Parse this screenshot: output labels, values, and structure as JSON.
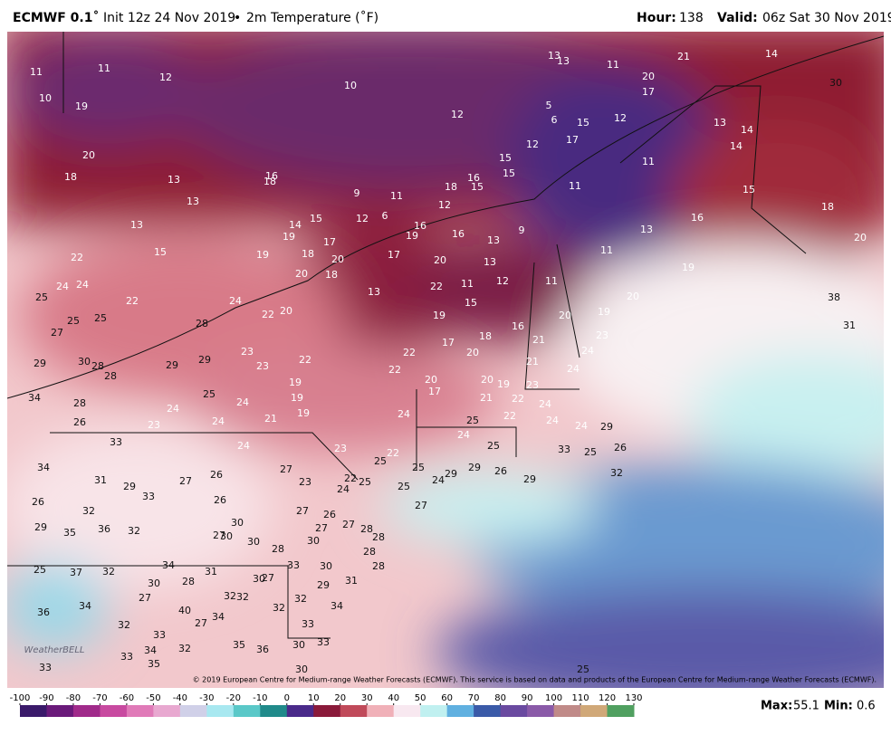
{
  "header": {
    "model": "ECMWF 0.1˚",
    "init": "Init 12z 24 Nov 2019",
    "separator": "•",
    "field": "2m Temperature (˚F)",
    "hour_label": "Hour:",
    "hour": "138",
    "valid_label": "Valid:",
    "valid": "06z Sat 30 Nov 2019"
  },
  "map": {
    "labels": [
      11,
      11,
      12,
      10,
      19,
      10,
      12,
      5,
      6,
      15,
      12,
      13,
      13,
      11,
      20,
      17,
      14,
      21,
      13,
      14,
      14,
      17,
      12,
      15,
      15,
      16,
      15,
      18,
      11,
      11,
      15,
      18,
      16,
      13,
      20,
      9,
      13,
      16,
      19,
      16,
      12,
      11,
      9,
      6,
      12,
      15,
      14,
      19,
      13,
      13,
      13,
      15,
      16,
      18,
      20,
      18,
      22,
      24,
      24,
      25,
      22,
      25,
      25,
      27,
      28,
      24,
      22,
      20,
      18,
      20,
      17,
      19,
      18,
      20,
      17,
      13,
      20,
      13,
      11,
      12,
      11,
      22,
      15,
      19,
      16,
      20,
      19,
      20,
      19,
      11,
      17,
      18,
      20,
      21,
      23,
      24,
      24,
      21,
      22,
      22,
      22,
      23,
      23,
      29,
      30,
      28,
      28,
      29,
      29,
      34,
      28,
      26,
      23,
      24,
      24,
      24,
      25,
      19,
      19,
      19,
      21,
      20,
      17,
      20,
      19,
      23,
      21,
      22,
      22,
      24,
      24,
      24,
      25,
      24,
      25,
      24,
      29,
      33,
      25,
      26,
      33,
      24,
      23,
      22,
      25,
      25,
      24,
      29,
      29,
      26,
      29,
      32,
      34,
      31,
      29,
      27,
      26,
      27,
      23,
      22,
      24,
      25,
      25,
      26,
      32,
      33,
      26,
      27,
      26,
      27,
      29,
      35,
      36,
      32,
      30,
      27,
      30,
      30,
      28,
      27,
      27,
      28,
      28,
      30,
      28,
      28,
      25,
      37,
      32,
      34,
      31,
      28,
      30,
      33,
      30,
      29,
      31,
      30,
      27,
      27,
      34,
      36,
      40,
      32,
      32,
      32,
      32,
      34,
      27,
      34,
      32,
      33,
      32,
      34,
      33,
      35,
      35,
      36,
      30,
      33,
      33,
      30,
      33,
      38,
      31,
      30,
      25
    ],
    "copyright": "© 2019 European Centre for Medium-range Weather Forecasts (ECMWF). This service is based on data and products of the European Centre for Medium-range Weather Forecasts (ECMWF).",
    "logo": "WeatherBELL"
  },
  "colorbar": {
    "ticks": [
      -100,
      -90,
      -80,
      -70,
      -60,
      -50,
      -40,
      -30,
      -20,
      -10,
      0,
      10,
      20,
      30,
      40,
      50,
      60,
      70,
      80,
      90,
      100,
      110,
      120,
      130
    ],
    "colors": [
      "#3a1a6a",
      "#6a1a7a",
      "#a02a8a",
      "#c84aa0",
      "#e07ab8",
      "#e8a8d0",
      "#d0d0e8",
      "#a8e8f0",
      "#5ac8c8",
      "#208a8a",
      "#4a2a8a",
      "#8a1a3a",
      "#c04a5a",
      "#f0b0b8",
      "#f8e8f0",
      "#c0f0f0",
      "#60b0e0",
      "#3a5aa8",
      "#6a4aa0",
      "#8a5aa8",
      "#c08a88",
      "#d0a878",
      "#50a060"
    ]
  },
  "footer": {
    "max_label": "Max:",
    "max": "55.1",
    "min_label": "Min:",
    "min": "0.6"
  }
}
